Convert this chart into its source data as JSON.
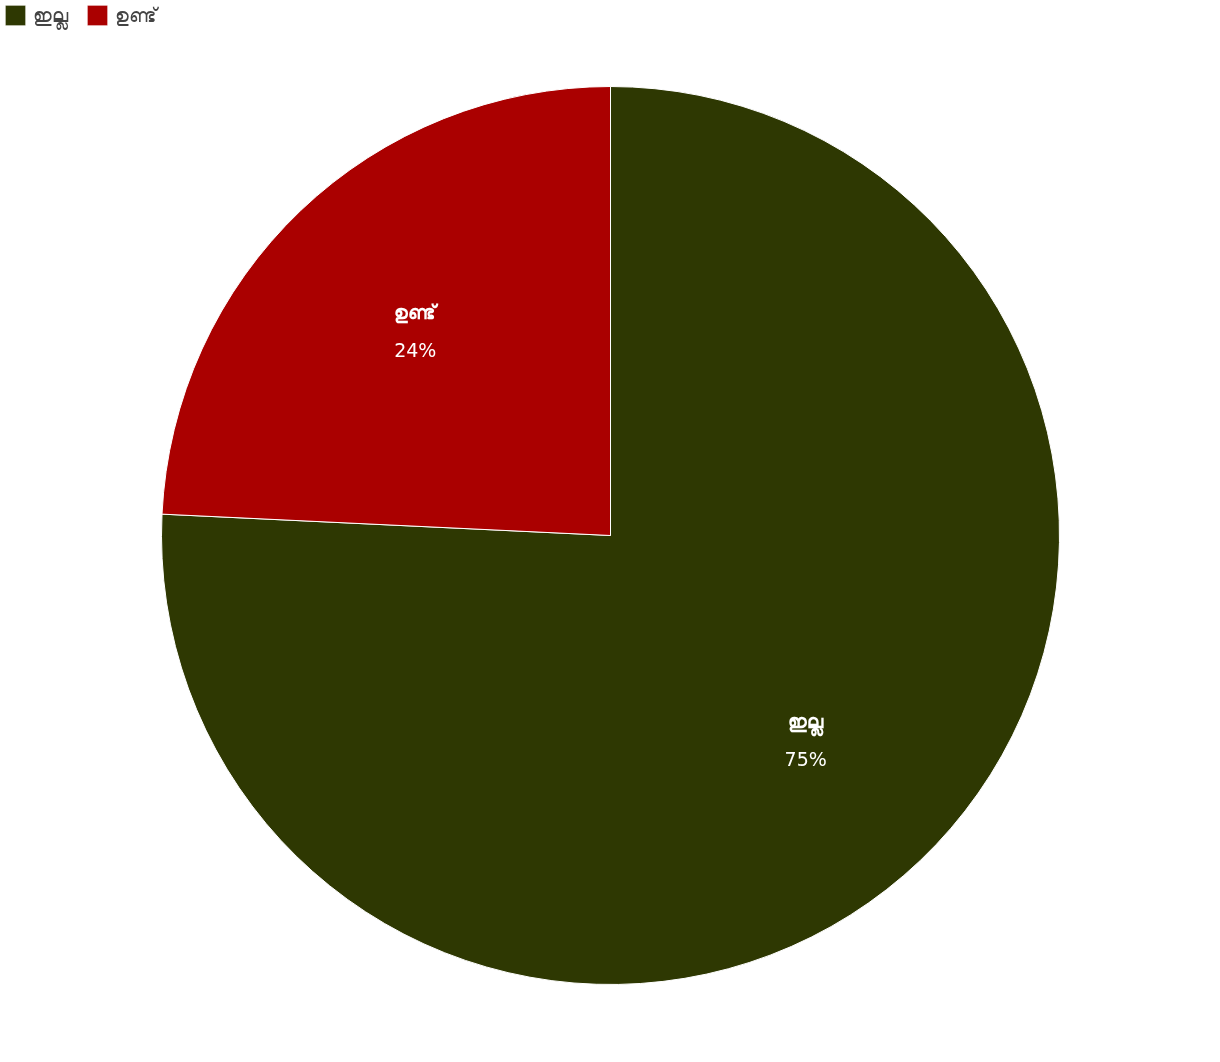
{
  "chart_data": {
    "type": "pie",
    "categories": [
      "ഇല്ല",
      "ഉണ്ട്"
    ],
    "values": [
      75,
      24
    ],
    "colors": [
      "#2e3802",
      "#aa0000"
    ],
    "value_labels": [
      "75%",
      "24%"
    ],
    "legend": "top left"
  }
}
